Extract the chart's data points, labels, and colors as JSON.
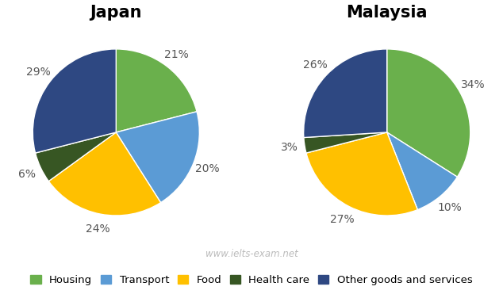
{
  "japan": {
    "title": "Japan",
    "values": [
      21,
      20,
      24,
      6,
      29
    ],
    "pct_labels": [
      "21%",
      "20%",
      "24%",
      "6%",
      "29%"
    ],
    "colors": [
      "#6ab04c",
      "#5b9bd5",
      "#ffc000",
      "#375623",
      "#2e4882"
    ],
    "startangle": 90,
    "counterclock": false
  },
  "malaysia": {
    "title": "Malaysia",
    "values": [
      34,
      10,
      27,
      3,
      26
    ],
    "pct_labels": [
      "34%",
      "10%",
      "27%",
      "3%",
      "26%"
    ],
    "colors": [
      "#6ab04c",
      "#5b9bd5",
      "#ffc000",
      "#375623",
      "#2e4882"
    ],
    "startangle": 90,
    "counterclock": false
  },
  "legend_labels": [
    "Housing",
    "Transport",
    "Food",
    "Health care",
    "Other goods and services"
  ],
  "legend_colors": [
    "#6ab04c",
    "#5b9bd5",
    "#ffc000",
    "#375623",
    "#2e4882"
  ],
  "watermark": "www.ielts-exam.net",
  "title_fontsize": 15,
  "label_fontsize": 10,
  "label_color": "#555555",
  "legend_fontsize": 9.5
}
